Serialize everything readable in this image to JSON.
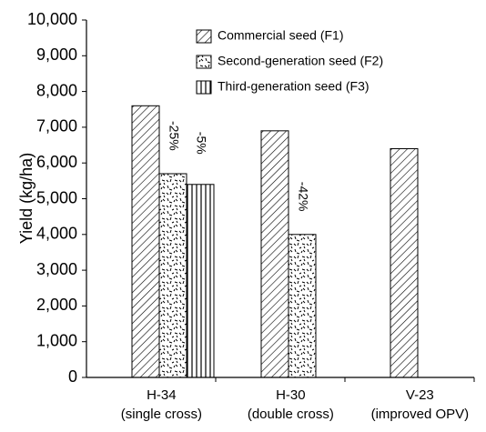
{
  "chart_data": {
    "type": "bar",
    "ylabel": "Yield (kg/ha)",
    "categories": [
      [
        "H-34",
        "(single cross)"
      ],
      [
        "H-30",
        "(double  cross)"
      ],
      [
        "V-23",
        "(improved OPV)"
      ]
    ],
    "series": [
      {
        "name": "Commercial seed (F1)",
        "color": "#000000",
        "pattern": "diagonal",
        "values": [
          7600,
          6900,
          6400
        ]
      },
      {
        "name": "Second-generation seed (F2)",
        "color": "#000000",
        "pattern": "speckle",
        "values": [
          5700,
          4000,
          null
        ]
      },
      {
        "name": "Third-generation seed (F3)",
        "color": "#000000",
        "pattern": "vertical",
        "values": [
          5400,
          null,
          null
        ]
      }
    ],
    "annotations": [
      {
        "text": "-25%",
        "category": "H-34",
        "series": "Second-generation seed (F2)"
      },
      {
        "text": "-5%",
        "category": "H-34",
        "series": "Third-generation seed (F3)"
      },
      {
        "text": "-42%",
        "category": "H-30",
        "series": "Second-generation seed (F2)"
      }
    ],
    "ylim": [
      0,
      10000
    ],
    "yticks": [
      0,
      {
        "value": 1000,
        "label": "1,000"
      },
      {
        "value": 2000,
        "label": "2,000"
      },
      {
        "value": 3000,
        "label": "3,000"
      },
      {
        "value": 4000,
        "label": "4,000"
      },
      {
        "value": 5000,
        "label": "5,000"
      },
      {
        "value": 6000,
        "label": "6,000"
      },
      {
        "value": 7000,
        "label": "7,000"
      },
      {
        "value": 8000,
        "label": "8,000"
      },
      {
        "value": 9000,
        "label": "9,000"
      },
      {
        "value": 10000,
        "label": "10,000"
      }
    ],
    "legend": "top-right",
    "grid": false
  }
}
